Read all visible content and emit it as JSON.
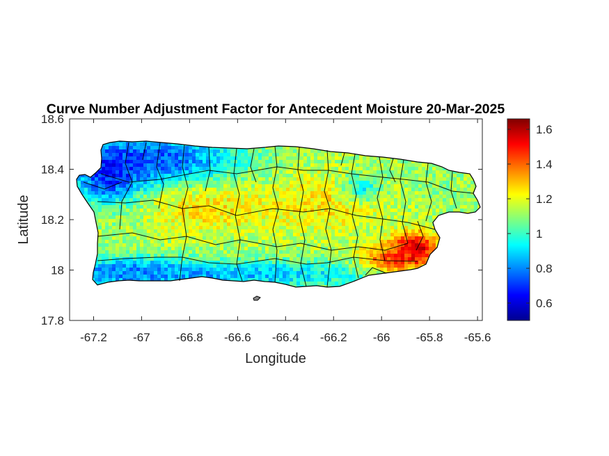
{
  "chart_data": {
    "type": "heatmap",
    "title": "Curve Number Adjustment Factor for Antecedent Moisture 20-Mar-2025",
    "xlabel": "Longitude",
    "ylabel": "Latitude",
    "xlim": [
      -67.3,
      -65.58
    ],
    "ylim": [
      17.8,
      18.6
    ],
    "x_ticks": [
      -67.2,
      -67,
      -66.8,
      -66.6,
      -66.4,
      -66.2,
      -66,
      -65.8,
      -65.6
    ],
    "x_tick_labels": [
      "-67.2",
      "-67",
      "-66.8",
      "-66.6",
      "-66.4",
      "-66.2",
      "-66",
      "-65.8",
      "-65.6"
    ],
    "y_ticks": [
      17.8,
      18,
      18.2,
      18.4,
      18.6
    ],
    "y_tick_labels": [
      "17.8",
      "18",
      "18.2",
      "18.4",
      "18.6"
    ],
    "grid": false,
    "colormap": "jet",
    "colorbar": {
      "limits": [
        0.5,
        1.66
      ],
      "ticks": [
        0.6,
        0.8,
        1,
        1.2,
        1.4,
        1.6
      ],
      "tick_labels": [
        "0.6",
        "0.8",
        "1",
        "1.2",
        "1.4",
        "1.6"
      ]
    },
    "region": "Puerto Rico",
    "field_description_values": {
      "northwest_interior": 0.75,
      "central_interior": 1.2,
      "south_coast": 0.85,
      "northeast": 1.15,
      "southeast_max": 1.65
    }
  },
  "colors": {
    "colormap_stops": [
      "#00008f",
      "#0000ff",
      "#00ffff",
      "#ffff00",
      "#ff0000",
      "#800000"
    ],
    "axes": "#262626",
    "borders": "#000000"
  }
}
